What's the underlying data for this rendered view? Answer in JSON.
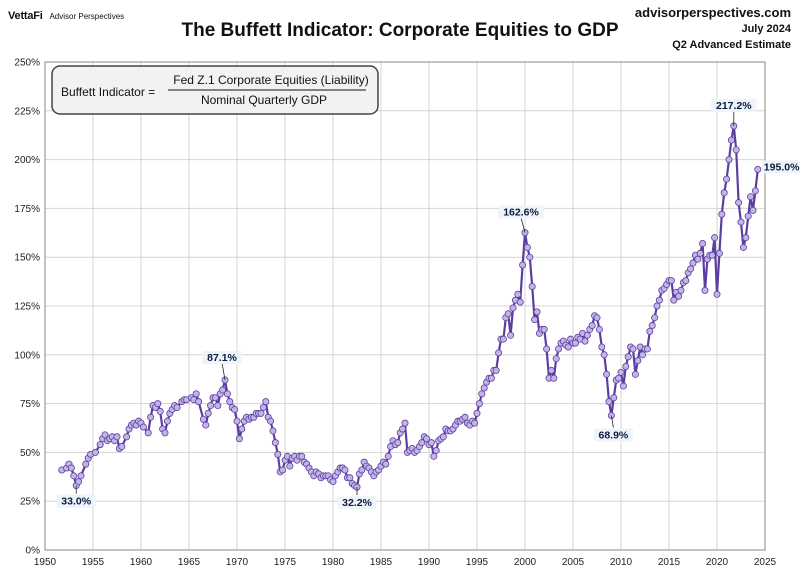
{
  "header": {
    "brand_logo": "VettaFi",
    "brand_tagline": "Advisor Perspectives",
    "site": "advisorperspectives.com",
    "date": "July 2024",
    "estimate": "Q2 Advanced Estimate"
  },
  "chart_data": {
    "type": "line",
    "title": "The Buffett Indicator: Corporate Equities to GDP",
    "xlabel": "",
    "ylabel": "",
    "xlim": [
      1950,
      2025
    ],
    "ylim": [
      0,
      250
    ],
    "x_ticks": [
      "1950",
      "1955",
      "1960",
      "1965",
      "1970",
      "1975",
      "1980",
      "1985",
      "1990",
      "1995",
      "2000",
      "2005",
      "2010",
      "2015",
      "2020",
      "2025"
    ],
    "y_ticks": [
      "0%",
      "25%",
      "50%",
      "75%",
      "100%",
      "125%",
      "150%",
      "175%",
      "200%",
      "225%",
      "250%"
    ],
    "grid": true,
    "formula": {
      "label": "Buffett Indicator =",
      "numerator": "Fed Z.1 Corporate Equities (Liability)",
      "denominator": "Nominal Quarterly GDP"
    },
    "line_color": "#5b3fa0",
    "marker_color": "#c3b3e6",
    "annotations": [
      {
        "text": "33.0%",
        "x": 1953.25,
        "y": 33.0
      },
      {
        "text": "87.1%",
        "x": 1968.75,
        "y": 87.1
      },
      {
        "text": "32.2%",
        "x": 1982.5,
        "y": 32.2
      },
      {
        "text": "162.6%",
        "x": 2000.0,
        "y": 162.6
      },
      {
        "text": "68.9%",
        "x": 2009.0,
        "y": 68.9
      },
      {
        "text": "217.2%",
        "x": 2021.75,
        "y": 217.2
      },
      {
        "text": "195.0%",
        "x": 2024.25,
        "y": 195.0
      }
    ],
    "series": [
      {
        "values": [
          [
            1951.75,
            41
          ],
          [
            1952.25,
            42
          ],
          [
            1952.5,
            44
          ],
          [
            1952.75,
            42
          ],
          [
            1953.0,
            38
          ],
          [
            1953.25,
            33.0
          ],
          [
            1953.5,
            35
          ],
          [
            1953.75,
            38
          ],
          [
            1954.25,
            44
          ],
          [
            1954.5,
            47
          ],
          [
            1954.75,
            49
          ],
          [
            1955.25,
            50
          ],
          [
            1955.75,
            54
          ],
          [
            1956.0,
            57
          ],
          [
            1956.25,
            59
          ],
          [
            1956.5,
            56
          ],
          [
            1956.75,
            57
          ],
          [
            1957.0,
            58
          ],
          [
            1957.25,
            56
          ],
          [
            1957.5,
            58
          ],
          [
            1957.75,
            52
          ],
          [
            1958.0,
            53
          ],
          [
            1958.5,
            58
          ],
          [
            1958.75,
            62
          ],
          [
            1959.0,
            64
          ],
          [
            1959.25,
            65
          ],
          [
            1959.5,
            64
          ],
          [
            1959.75,
            66
          ],
          [
            1960.0,
            65
          ],
          [
            1960.25,
            63
          ],
          [
            1960.75,
            60
          ],
          [
            1961.0,
            68
          ],
          [
            1961.25,
            74
          ],
          [
            1961.5,
            73
          ],
          [
            1961.75,
            75
          ],
          [
            1962.0,
            71
          ],
          [
            1962.25,
            62
          ],
          [
            1962.5,
            60
          ],
          [
            1962.75,
            66
          ],
          [
            1963.0,
            70
          ],
          [
            1963.25,
            72
          ],
          [
            1963.5,
            74
          ],
          [
            1963.75,
            73
          ],
          [
            1964.25,
            76
          ],
          [
            1964.5,
            77
          ],
          [
            1964.75,
            77
          ],
          [
            1965.25,
            78
          ],
          [
            1965.5,
            77
          ],
          [
            1965.75,
            80
          ],
          [
            1966.0,
            76
          ],
          [
            1966.5,
            67
          ],
          [
            1966.75,
            64
          ],
          [
            1967.0,
            70
          ],
          [
            1967.25,
            74
          ],
          [
            1967.5,
            78
          ],
          [
            1967.75,
            78
          ],
          [
            1968.0,
            74
          ],
          [
            1968.25,
            80
          ],
          [
            1968.5,
            82
          ],
          [
            1968.75,
            87.1
          ],
          [
            1969.0,
            80
          ],
          [
            1969.25,
            76
          ],
          [
            1969.5,
            73
          ],
          [
            1969.75,
            72
          ],
          [
            1970.0,
            66
          ],
          [
            1970.25,
            57
          ],
          [
            1970.5,
            62
          ],
          [
            1970.75,
            66
          ],
          [
            1971.0,
            68
          ],
          [
            1971.25,
            67
          ],
          [
            1971.5,
            68
          ],
          [
            1971.75,
            68
          ],
          [
            1972.0,
            70
          ],
          [
            1972.25,
            70
          ],
          [
            1972.5,
            70
          ],
          [
            1972.75,
            73
          ],
          [
            1973.0,
            76
          ],
          [
            1973.25,
            68
          ],
          [
            1973.5,
            66
          ],
          [
            1973.75,
            61
          ],
          [
            1974.0,
            55
          ],
          [
            1974.25,
            49
          ],
          [
            1974.5,
            40
          ],
          [
            1974.75,
            41
          ],
          [
            1975.0,
            46
          ],
          [
            1975.25,
            48
          ],
          [
            1975.5,
            43
          ],
          [
            1975.75,
            47
          ],
          [
            1976.0,
            48
          ],
          [
            1976.25,
            46
          ],
          [
            1976.5,
            48
          ],
          [
            1976.75,
            48
          ],
          [
            1977.0,
            45
          ],
          [
            1977.25,
            44
          ],
          [
            1977.5,
            42
          ],
          [
            1977.75,
            40
          ],
          [
            1978.0,
            38
          ],
          [
            1978.25,
            40
          ],
          [
            1978.5,
            39
          ],
          [
            1978.75,
            37
          ],
          [
            1979.0,
            38
          ],
          [
            1979.25,
            38
          ],
          [
            1979.5,
            38
          ],
          [
            1979.75,
            36
          ],
          [
            1980.0,
            35
          ],
          [
            1980.25,
            38
          ],
          [
            1980.5,
            40
          ],
          [
            1980.75,
            42
          ],
          [
            1981.0,
            42
          ],
          [
            1981.25,
            41
          ],
          [
            1981.5,
            37
          ],
          [
            1981.75,
            37
          ],
          [
            1982.0,
            34
          ],
          [
            1982.25,
            33
          ],
          [
            1982.5,
            32.2
          ],
          [
            1982.75,
            39
          ],
          [
            1983.0,
            41
          ],
          [
            1983.25,
            45
          ],
          [
            1983.5,
            43
          ],
          [
            1983.75,
            42
          ],
          [
            1984.0,
            40
          ],
          [
            1984.25,
            38
          ],
          [
            1984.5,
            40
          ],
          [
            1984.75,
            41
          ],
          [
            1985.0,
            43
          ],
          [
            1985.25,
            45
          ],
          [
            1985.5,
            44
          ],
          [
            1985.75,
            48
          ],
          [
            1986.0,
            53
          ],
          [
            1986.25,
            56
          ],
          [
            1986.5,
            54
          ],
          [
            1986.75,
            55
          ],
          [
            1987.0,
            60
          ],
          [
            1987.25,
            62
          ],
          [
            1987.5,
            65
          ],
          [
            1987.75,
            50
          ],
          [
            1988.0,
            51
          ],
          [
            1988.25,
            52
          ],
          [
            1988.5,
            50
          ],
          [
            1988.75,
            51
          ],
          [
            1989.0,
            53
          ],
          [
            1989.25,
            55
          ],
          [
            1989.5,
            58
          ],
          [
            1989.75,
            57
          ],
          [
            1990.0,
            54
          ],
          [
            1990.25,
            55
          ],
          [
            1990.5,
            48
          ],
          [
            1990.75,
            51
          ],
          [
            1991.0,
            56
          ],
          [
            1991.25,
            57
          ],
          [
            1991.5,
            58
          ],
          [
            1991.75,
            62
          ],
          [
            1992.0,
            61
          ],
          [
            1992.25,
            61
          ],
          [
            1992.5,
            62
          ],
          [
            1992.75,
            64
          ],
          [
            1993.0,
            66
          ],
          [
            1993.25,
            66
          ],
          [
            1993.5,
            67
          ],
          [
            1993.75,
            68
          ],
          [
            1994.0,
            65
          ],
          [
            1994.25,
            64
          ],
          [
            1994.5,
            66
          ],
          [
            1994.75,
            65
          ],
          [
            1995.0,
            70
          ],
          [
            1995.25,
            75
          ],
          [
            1995.5,
            80
          ],
          [
            1995.75,
            83
          ],
          [
            1996.0,
            86
          ],
          [
            1996.25,
            88
          ],
          [
            1996.5,
            88
          ],
          [
            1996.75,
            92
          ],
          [
            1997.0,
            92
          ],
          [
            1997.25,
            101
          ],
          [
            1997.5,
            108
          ],
          [
            1997.75,
            108
          ],
          [
            1998.0,
            119
          ],
          [
            1998.25,
            121
          ],
          [
            1998.5,
            110
          ],
          [
            1998.75,
            124
          ],
          [
            1999.0,
            128
          ],
          [
            1999.25,
            131
          ],
          [
            1999.5,
            127
          ],
          [
            1999.75,
            146
          ],
          [
            2000.0,
            162.6
          ],
          [
            2000.25,
            155
          ],
          [
            2000.5,
            150
          ],
          [
            2000.75,
            135
          ],
          [
            2001.0,
            118
          ],
          [
            2001.25,
            122
          ],
          [
            2001.5,
            111
          ],
          [
            2001.75,
            113
          ],
          [
            2002.0,
            113
          ],
          [
            2002.25,
            103
          ],
          [
            2002.5,
            88
          ],
          [
            2002.75,
            92
          ],
          [
            2003.0,
            88
          ],
          [
            2003.25,
            98
          ],
          [
            2003.5,
            103
          ],
          [
            2003.75,
            106
          ],
          [
            2004.0,
            107
          ],
          [
            2004.25,
            105
          ],
          [
            2004.5,
            104
          ],
          [
            2004.75,
            108
          ],
          [
            2005.0,
            106
          ],
          [
            2005.25,
            106
          ],
          [
            2005.5,
            109
          ],
          [
            2005.75,
            108
          ],
          [
            2006.0,
            111
          ],
          [
            2006.25,
            107
          ],
          [
            2006.5,
            110
          ],
          [
            2006.75,
            113
          ],
          [
            2007.0,
            115
          ],
          [
            2007.25,
            120
          ],
          [
            2007.5,
            119
          ],
          [
            2007.75,
            113
          ],
          [
            2008.0,
            104
          ],
          [
            2008.25,
            100
          ],
          [
            2008.5,
            90
          ],
          [
            2008.75,
            76
          ],
          [
            2009.0,
            68.9
          ],
          [
            2009.25,
            78
          ],
          [
            2009.5,
            87
          ],
          [
            2009.75,
            88
          ],
          [
            2010.0,
            91
          ],
          [
            2010.25,
            84
          ],
          [
            2010.5,
            94
          ],
          [
            2010.75,
            99
          ],
          [
            2011.0,
            104
          ],
          [
            2011.25,
            103
          ],
          [
            2011.5,
            90
          ],
          [
            2011.75,
            97
          ],
          [
            2012.0,
            104
          ],
          [
            2012.25,
            100
          ],
          [
            2012.5,
            103
          ],
          [
            2012.75,
            103
          ],
          [
            2013.0,
            112
          ],
          [
            2013.25,
            115
          ],
          [
            2013.5,
            119
          ],
          [
            2013.75,
            125
          ],
          [
            2014.0,
            128
          ],
          [
            2014.25,
            133
          ],
          [
            2014.5,
            134
          ],
          [
            2014.75,
            136
          ],
          [
            2015.0,
            138
          ],
          [
            2015.25,
            138
          ],
          [
            2015.5,
            128
          ],
          [
            2015.75,
            132
          ],
          [
            2016.0,
            130
          ],
          [
            2016.25,
            133
          ],
          [
            2016.5,
            137
          ],
          [
            2016.75,
            138
          ],
          [
            2017.0,
            142
          ],
          [
            2017.25,
            144
          ],
          [
            2017.5,
            147
          ],
          [
            2017.75,
            151
          ],
          [
            2018.0,
            149
          ],
          [
            2018.25,
            152
          ],
          [
            2018.5,
            157
          ],
          [
            2018.75,
            133
          ],
          [
            2019.0,
            149
          ],
          [
            2019.25,
            151
          ],
          [
            2019.5,
            151
          ],
          [
            2019.75,
            160
          ],
          [
            2020.0,
            131
          ],
          [
            2020.25,
            152
          ],
          [
            2020.5,
            172
          ],
          [
            2020.75,
            183
          ],
          [
            2021.0,
            190
          ],
          [
            2021.25,
            200
          ],
          [
            2021.5,
            210
          ],
          [
            2021.75,
            217.2
          ],
          [
            2022.0,
            205
          ],
          [
            2022.25,
            178
          ],
          [
            2022.5,
            168
          ],
          [
            2022.75,
            155
          ],
          [
            2023.0,
            160
          ],
          [
            2023.25,
            171
          ],
          [
            2023.5,
            181
          ],
          [
            2023.75,
            174
          ],
          [
            2024.0,
            184
          ],
          [
            2024.25,
            195.0
          ]
        ]
      }
    ]
  }
}
